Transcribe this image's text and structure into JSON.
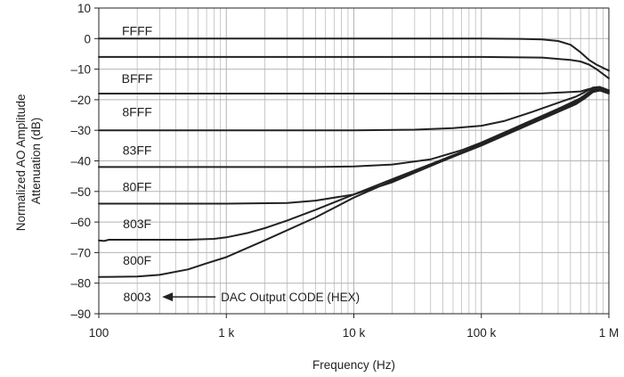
{
  "chart_data": {
    "type": "line",
    "title": "",
    "xlabel": "Frequency (Hz)",
    "ylabel_lines": [
      "Normalized AO Amplitude",
      "Attenuation (dB)"
    ],
    "x_scale": "log",
    "xlim": [
      100,
      1000000
    ],
    "ylim": [
      -90,
      10
    ],
    "x_ticks": [
      {
        "value": 100,
        "label": "100"
      },
      {
        "value": 1000,
        "label": "1 k"
      },
      {
        "value": 10000,
        "label": "10 k"
      },
      {
        "value": 100000,
        "label": "100 k"
      },
      {
        "value": 1000000,
        "label": "1 M"
      }
    ],
    "y_ticks": [
      {
        "value": 10,
        "label": "10"
      },
      {
        "value": 0,
        "label": "0"
      },
      {
        "value": -10,
        "label": "–10"
      },
      {
        "value": -20,
        "label": "–20"
      },
      {
        "value": -30,
        "label": "–30"
      },
      {
        "value": -40,
        "label": "–40"
      },
      {
        "value": -50,
        "label": "–50"
      },
      {
        "value": -60,
        "label": "–60"
      },
      {
        "value": -70,
        "label": "–70"
      },
      {
        "value": -80,
        "label": "–80"
      },
      {
        "value": -90,
        "label": "–90"
      }
    ],
    "grid": true,
    "series_color": "#222222",
    "grid_color": "#b4b4b4",
    "annotation": {
      "text": "DAC Output CODE (HEX)",
      "points_to": "8003"
    },
    "series": [
      {
        "name": "FFFF",
        "label_at": [
          200,
          2.5
        ],
        "points": [
          [
            100,
            0
          ],
          [
            1000,
            0
          ],
          [
            10000,
            0
          ],
          [
            100000,
            0
          ],
          [
            200000,
            -0.1
          ],
          [
            300000,
            -0.3
          ],
          [
            400000,
            -0.8
          ],
          [
            500000,
            -2
          ],
          [
            600000,
            -4.5
          ],
          [
            700000,
            -7
          ],
          [
            800000,
            -8.5
          ],
          [
            1000000,
            -10.5
          ]
        ]
      },
      {
        "name": "BFFF",
        "label_at": [
          200,
          -13
        ],
        "points": [
          [
            100,
            -6
          ],
          [
            1000,
            -6
          ],
          [
            10000,
            -6
          ],
          [
            100000,
            -6
          ],
          [
            300000,
            -6.2
          ],
          [
            500000,
            -7
          ],
          [
            600000,
            -7.5
          ],
          [
            700000,
            -8.5
          ],
          [
            800000,
            -10
          ],
          [
            1000000,
            -13
          ]
        ]
      },
      {
        "name": "8FFF",
        "label_at": [
          200,
          -24
        ],
        "points": [
          [
            100,
            -18
          ],
          [
            1000,
            -18
          ],
          [
            10000,
            -18
          ],
          [
            100000,
            -18
          ],
          [
            300000,
            -17.9
          ],
          [
            500000,
            -17.5
          ],
          [
            600000,
            -17.3
          ],
          [
            700000,
            -16.5
          ],
          [
            800000,
            -16
          ],
          [
            900000,
            -16.2
          ],
          [
            1000000,
            -17
          ]
        ]
      },
      {
        "name": "83FF",
        "label_at": [
          200,
          -36.5
        ],
        "points": [
          [
            100,
            -30
          ],
          [
            1000,
            -30
          ],
          [
            10000,
            -30
          ],
          [
            30000,
            -29.8
          ],
          [
            60000,
            -29.3
          ],
          [
            100000,
            -28.5
          ],
          [
            150000,
            -27
          ],
          [
            250000,
            -24
          ],
          [
            400000,
            -21
          ],
          [
            550000,
            -19
          ],
          [
            650000,
            -17.5
          ],
          [
            750000,
            -16
          ],
          [
            850000,
            -15.8
          ],
          [
            1000000,
            -17
          ]
        ]
      },
      {
        "name": "80FF",
        "label_at": [
          200,
          -48.5
        ],
        "points": [
          [
            100,
            -42
          ],
          [
            1000,
            -42
          ],
          [
            5000,
            -42
          ],
          [
            10000,
            -41.8
          ],
          [
            20000,
            -41.2
          ],
          [
            40000,
            -39.5
          ],
          [
            70000,
            -36.5
          ],
          [
            100000,
            -34
          ],
          [
            200000,
            -28.5
          ],
          [
            400000,
            -23
          ],
          [
            600000,
            -19.5
          ],
          [
            700000,
            -17.5
          ],
          [
            800000,
            -16
          ],
          [
            900000,
            -16.2
          ],
          [
            1000000,
            -17
          ]
        ]
      },
      {
        "name": "803F",
        "label_at": [
          200,
          -60.5
        ],
        "points": [
          [
            100,
            -54
          ],
          [
            1000,
            -54
          ],
          [
            3000,
            -53.8
          ],
          [
            5000,
            -53
          ],
          [
            10000,
            -51
          ],
          [
            20000,
            -47
          ],
          [
            50000,
            -40
          ],
          [
            100000,
            -34.5
          ],
          [
            200000,
            -28.5
          ],
          [
            400000,
            -23
          ],
          [
            550000,
            -20.5
          ],
          [
            650000,
            -18.5
          ],
          [
            750000,
            -16.5
          ],
          [
            850000,
            -16.2
          ],
          [
            1000000,
            -17
          ]
        ]
      },
      {
        "name": "800F",
        "label_at": [
          200,
          -72.5
        ],
        "points": [
          [
            100,
            -66
          ],
          [
            110,
            -66.2
          ],
          [
            120,
            -65.8
          ],
          [
            500,
            -65.8
          ],
          [
            800,
            -65.5
          ],
          [
            1000,
            -65
          ],
          [
            1500,
            -63.5
          ],
          [
            2000,
            -62
          ],
          [
            3000,
            -59.5
          ],
          [
            5000,
            -56
          ],
          [
            10000,
            -51
          ],
          [
            20000,
            -46
          ],
          [
            50000,
            -39.5
          ],
          [
            100000,
            -34.5
          ],
          [
            200000,
            -29
          ],
          [
            400000,
            -23.5
          ],
          [
            550000,
            -21
          ],
          [
            650000,
            -19
          ],
          [
            750000,
            -17
          ],
          [
            850000,
            -16.5
          ],
          [
            1000000,
            -17.5
          ]
        ]
      },
      {
        "name": "8003",
        "label_at": [
          200,
          -84.5
        ],
        "points": [
          [
            100,
            -78
          ],
          [
            200,
            -77.8
          ],
          [
            300,
            -77.3
          ],
          [
            500,
            -75.5
          ],
          [
            700,
            -73.5
          ],
          [
            1000,
            -71.5
          ],
          [
            2000,
            -66
          ],
          [
            5000,
            -58.5
          ],
          [
            10000,
            -52
          ],
          [
            20000,
            -46.5
          ],
          [
            50000,
            -40
          ],
          [
            100000,
            -35
          ],
          [
            200000,
            -29.5
          ],
          [
            400000,
            -24
          ],
          [
            550000,
            -21.5
          ],
          [
            650000,
            -19.5
          ],
          [
            750000,
            -17.5
          ],
          [
            850000,
            -17
          ],
          [
            1000000,
            -18
          ]
        ]
      }
    ]
  }
}
